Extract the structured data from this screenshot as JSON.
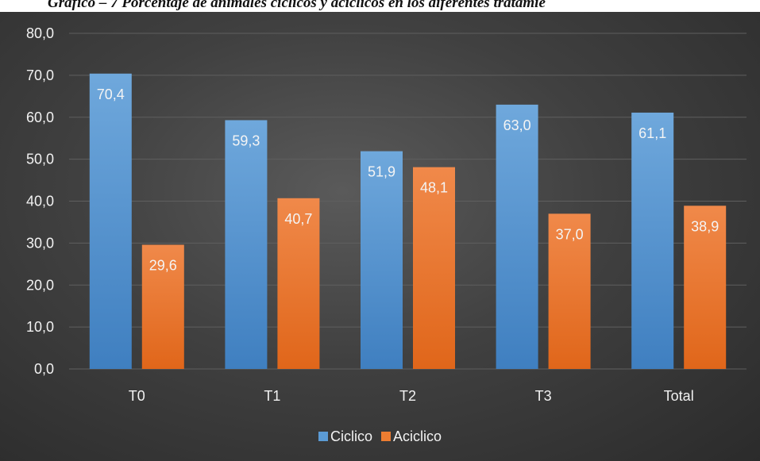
{
  "caption": "Gráfico – 7 Porcentaje de animales cíclicos y acíclicos en los diferentes tratamie",
  "colors": {
    "ciclico": "#5b9bd5",
    "aciclico": "#ed7d31",
    "gridline": "#5f5f5f",
    "text": "#f2f2f2"
  },
  "legend": {
    "items": [
      {
        "label": "Ciclico",
        "color": "#5b9bd5"
      },
      {
        "label": "Aciclico",
        "color": "#ed7d31"
      }
    ],
    "placement": "bottom"
  },
  "chart_data": {
    "type": "bar",
    "categories": [
      "T0",
      "T1",
      "T2",
      "T3",
      "Total"
    ],
    "series": [
      {
        "name": "Ciclico",
        "values": [
          70.4,
          59.3,
          51.9,
          63.0,
          61.1
        ],
        "labels": [
          "70,4",
          "59,3",
          "51,9",
          "63,0",
          "61,1"
        ]
      },
      {
        "name": "Aciclico",
        "values": [
          29.6,
          40.7,
          48.1,
          37.0,
          38.9
        ],
        "labels": [
          "29,6",
          "40,7",
          "48,1",
          "37,0",
          "38,9"
        ]
      }
    ],
    "title": "",
    "xlabel": "",
    "ylabel": "",
    "ylim": [
      0,
      80
    ],
    "yticks": [
      "0,0",
      "10,0",
      "20,0",
      "30,0",
      "40,0",
      "50,0",
      "60,0",
      "70,0",
      "80,0"
    ],
    "grid": true
  }
}
